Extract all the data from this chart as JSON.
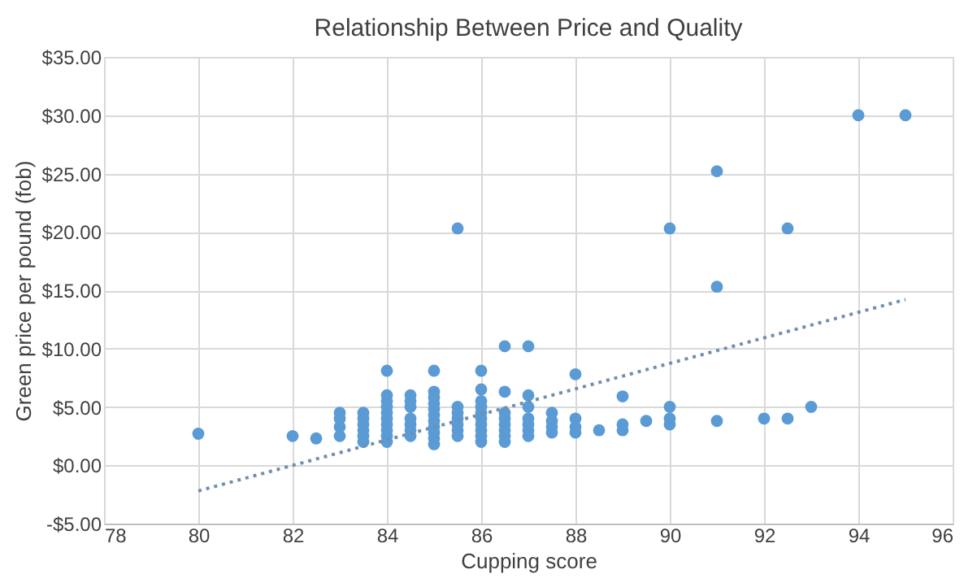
{
  "chart_data": {
    "type": "scatter",
    "title": "Relationship Between Price and Quality",
    "xlabel": "Cupping score",
    "ylabel": "Green price per pound (fob)",
    "xlim": [
      78,
      96
    ],
    "xticks": [
      78,
      80,
      82,
      84,
      86,
      88,
      90,
      92,
      94,
      96
    ],
    "ylim": [
      -5,
      35
    ],
    "yticks": [
      {
        "value": -5,
        "label": "-$5.00"
      },
      {
        "value": 0,
        "label": "$0.00"
      },
      {
        "value": 5,
        "label": "$5.00"
      },
      {
        "value": 10,
        "label": "$10.00"
      },
      {
        "value": 15,
        "label": "$15.00"
      },
      {
        "value": 20,
        "label": "$20.00"
      },
      {
        "value": 25,
        "label": "$25.00"
      },
      {
        "value": 30,
        "label": "$30.00"
      },
      {
        "value": 35,
        "label": "$35.00"
      }
    ],
    "grid": true,
    "series": [
      {
        "type": "scatter",
        "marker": "circle",
        "color": "#5b9bd5",
        "x": [
          80,
          82,
          82.5,
          83,
          83,
          83,
          83,
          83.5,
          83.5,
          83.5,
          83.5,
          83.5,
          83.5,
          84,
          84,
          84,
          84,
          84,
          84,
          84,
          84,
          84,
          84,
          84.5,
          84.5,
          84.5,
          84.5,
          84.5,
          84.5,
          84.5,
          85,
          85,
          85,
          85,
          85,
          85,
          85,
          85,
          85,
          85,
          85,
          85.5,
          85.5,
          85.5,
          85.5,
          85.5,
          85.5,
          86,
          86,
          86,
          86,
          86,
          86,
          86,
          86,
          86,
          86,
          86.5,
          86.5,
          86.5,
          86.5,
          86.5,
          86.5,
          86.5,
          86.5,
          87,
          87,
          87,
          87,
          87,
          87,
          87,
          87.5,
          87.5,
          87.5,
          87.5,
          88,
          88,
          88,
          88,
          88.5,
          89,
          89,
          89,
          89.5,
          90,
          90,
          90,
          90,
          91,
          91,
          91,
          92,
          92.5,
          92.5,
          93,
          94,
          95,
          85.5
        ],
        "values": [
          2.7,
          2.5,
          2.3,
          2.5,
          3.3,
          4.0,
          4.5,
          2.0,
          2.5,
          3.0,
          3.5,
          4.0,
          4.5,
          2.0,
          2.5,
          3.0,
          3.5,
          4.0,
          4.5,
          5.0,
          5.5,
          6.0,
          8.1,
          2.5,
          3.0,
          3.5,
          4.0,
          5.0,
          5.5,
          6.0,
          1.8,
          2.3,
          2.8,
          3.3,
          3.8,
          4.3,
          4.8,
          5.3,
          5.8,
          6.3,
          8.1,
          2.5,
          3.0,
          3.5,
          4.0,
          4.5,
          5.0,
          2.0,
          2.5,
          3.0,
          3.5,
          4.0,
          4.5,
          5.0,
          5.5,
          6.5,
          8.1,
          2.0,
          2.5,
          3.0,
          3.5,
          4.0,
          4.5,
          6.3,
          10.2,
          2.5,
          3.0,
          3.5,
          4.0,
          5.0,
          6.0,
          10.2,
          2.8,
          3.3,
          3.8,
          4.5,
          2.8,
          3.3,
          4.0,
          7.8,
          3.0,
          3.0,
          3.5,
          5.9,
          3.8,
          3.5,
          4.0,
          5.0,
          20.3,
          3.8,
          15.3,
          25.2,
          4.0,
          4.0,
          20.3,
          5.0,
          30.0,
          30.0,
          20.3
        ]
      },
      {
        "type": "line",
        "marker": "none",
        "color": "#6f8fb0",
        "line_style": "dotted",
        "x": [
          80,
          95
        ],
        "values": [
          -2.2,
          14.2
        ]
      }
    ]
  }
}
